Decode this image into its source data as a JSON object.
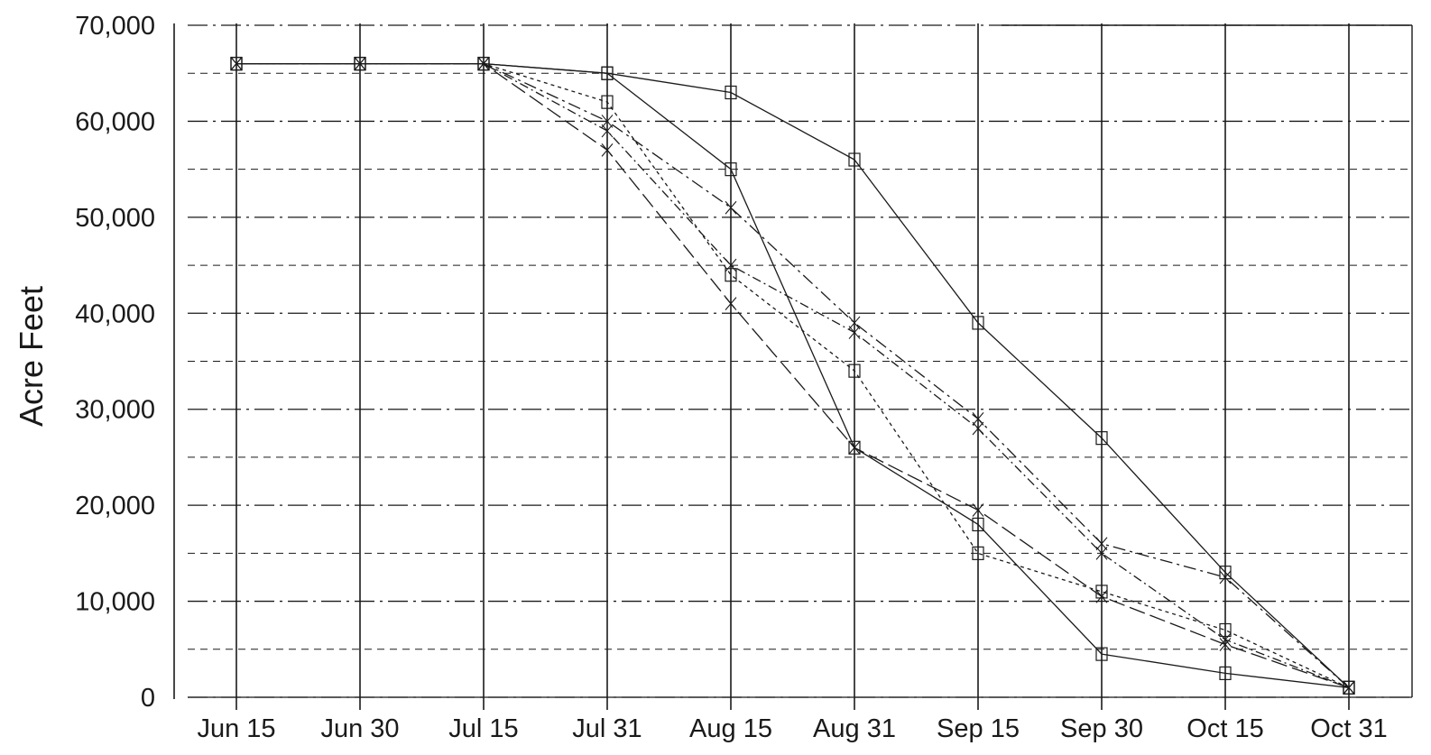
{
  "chart_data": {
    "type": "line",
    "title": "",
    "xlabel": "",
    "ylabel": "Acre Feet",
    "categories": [
      "Jun 15",
      "Jun 30",
      "Jul 15",
      "Jul 31",
      "Aug 15",
      "Aug 31",
      "Sep 15",
      "Sep 30",
      "Oct 15",
      "Oct 31"
    ],
    "ylim": [
      0,
      70000
    ],
    "yticks": [
      0,
      10000,
      20000,
      30000,
      40000,
      50000,
      60000,
      70000
    ],
    "ytick_labels": [
      "0",
      "10,000",
      "20,000",
      "30,000",
      "40,000",
      "50,000",
      "60,000",
      "70,000"
    ],
    "grid": "horizontal dashed every 5,000; vertical solid at each date",
    "legend": "none",
    "line_color": "#1a1a1a",
    "series": [
      {
        "values": [
          66000,
          66000,
          66000,
          65000,
          63000,
          56000,
          39000,
          27000,
          13000,
          1000
        ]
      },
      {
        "values": [
          66000,
          66000,
          66000,
          60000,
          51000,
          39000,
          29000,
          16000,
          12500,
          1000
        ]
      },
      {
        "values": [
          66000,
          66000,
          66000,
          65000,
          55000,
          26000,
          18000,
          4500,
          2500,
          1000
        ]
      },
      {
        "values": [
          66000,
          66000,
          66000,
          57000,
          41000,
          26000,
          19500,
          10500,
          5500,
          1000
        ]
      },
      {
        "values": [
          66000,
          66000,
          66000,
          62000,
          44000,
          34000,
          15000,
          11000,
          7000,
          1000
        ]
      },
      {
        "values": [
          66000,
          66000,
          66000,
          59000,
          45000,
          38000,
          28000,
          15000,
          6000,
          1000
        ]
      }
    ]
  }
}
